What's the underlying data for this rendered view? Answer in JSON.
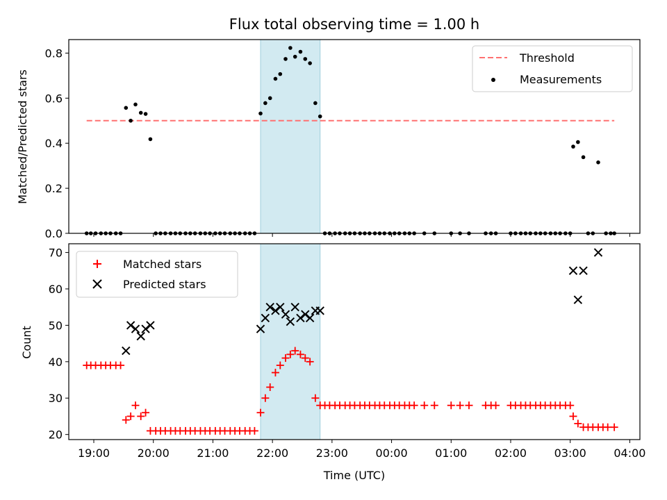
{
  "colors": {
    "threshold": "#ff7070",
    "measurement": "#000000",
    "matched": "#ff0000",
    "predicted": "#000000",
    "highlight": "#add8e6"
  },
  "chart_data": [
    {
      "type": "scatter",
      "title": "Flux total observing time = 1.00 h",
      "xlabel": "",
      "ylabel": "Matched/Predicted stars",
      "ylim": [
        0,
        0.86
      ],
      "xlim": [
        18.58,
        28.17
      ],
      "yticks": [
        0.0,
        0.2,
        0.4,
        0.6,
        0.8
      ],
      "yticklabels": [
        "0.0",
        "0.2",
        "0.4",
        "0.6",
        "0.8"
      ],
      "highlight_span": [
        21.8,
        22.8
      ],
      "legend_position": "upper right",
      "legend": [
        "Threshold",
        "Measurements"
      ],
      "series": [
        {
          "name": "Threshold",
          "kind": "dashed-line",
          "x": [
            18.88,
            27.74
          ],
          "y": [
            0.5,
            0.5
          ]
        },
        {
          "name": "Measurements",
          "kind": "dots",
          "x": [
            18.88,
            18.95,
            19.03,
            19.12,
            19.2,
            19.28,
            19.37,
            19.45,
            19.54,
            19.62,
            19.7,
            19.79,
            19.87,
            19.95,
            20.04,
            20.12,
            20.2,
            20.29,
            20.37,
            20.45,
            20.54,
            20.62,
            20.7,
            20.79,
            20.87,
            20.95,
            21.04,
            21.12,
            21.2,
            21.29,
            21.37,
            21.45,
            21.54,
            21.62,
            21.7,
            21.8,
            21.88,
            21.96,
            22.05,
            22.13,
            22.22,
            22.3,
            22.38,
            22.47,
            22.55,
            22.63,
            22.72,
            22.8,
            22.88,
            22.96,
            23.05,
            23.13,
            23.22,
            23.3,
            23.38,
            23.47,
            23.55,
            23.63,
            23.72,
            23.8,
            23.88,
            23.97,
            24.05,
            24.13,
            24.22,
            24.3,
            24.38,
            24.55,
            24.72,
            25.0,
            25.15,
            25.3,
            25.58,
            25.67,
            25.75,
            26.0,
            26.08,
            26.17,
            26.25,
            26.33,
            26.42,
            26.5,
            26.58,
            26.67,
            26.75,
            26.83,
            26.92,
            27.0,
            27.05,
            27.13,
            27.22,
            27.3,
            27.38,
            27.47,
            27.6,
            27.68,
            27.74
          ],
          "y": [
            0,
            0,
            0,
            0,
            0,
            0,
            0,
            0,
            0.557,
            0.5,
            0.572,
            0.535,
            0.53,
            0.418,
            0,
            0,
            0,
            0,
            0,
            0,
            0,
            0,
            0,
            0,
            0,
            0,
            0,
            0,
            0,
            0,
            0,
            0,
            0,
            0,
            0,
            0.532,
            0.578,
            0.6,
            0.686,
            0.707,
            0.774,
            0.823,
            0.784,
            0.806,
            0.774,
            0.755,
            0.578,
            0.519,
            0,
            0,
            0,
            0,
            0,
            0,
            0,
            0,
            0,
            0,
            0,
            0,
            0,
            0,
            0,
            0,
            0,
            0,
            0,
            0,
            0,
            0,
            0,
            0,
            0,
            0,
            0,
            0,
            0,
            0,
            0,
            0,
            0,
            0,
            0,
            0,
            0,
            0,
            0,
            0,
            0.385,
            0.405,
            0.338,
            0,
            0,
            0.315,
            0,
            0,
            0
          ]
        }
      ]
    },
    {
      "type": "scatter",
      "title": "",
      "xlabel": "Time (UTC)",
      "ylabel": "Count",
      "ylim": [
        18.6,
        72.4
      ],
      "xlim": [
        18.58,
        28.17
      ],
      "xticks": [
        19,
        20,
        21,
        22,
        23,
        24,
        25,
        26,
        27,
        28
      ],
      "xticklabels": [
        "19:00",
        "20:00",
        "21:00",
        "22:00",
        "23:00",
        "00:00",
        "01:00",
        "02:00",
        "03:00",
        "04:00"
      ],
      "yticks": [
        20,
        30,
        40,
        50,
        60,
        70
      ],
      "yticklabels": [
        "20",
        "30",
        "40",
        "50",
        "60",
        "70"
      ],
      "highlight_span": [
        21.8,
        22.8
      ],
      "legend_position": "upper left",
      "legend": [
        "Matched stars",
        "Predicted stars"
      ],
      "series": [
        {
          "name": "Matched stars",
          "marker": "plus",
          "x": [
            18.88,
            18.95,
            19.03,
            19.12,
            19.2,
            19.28,
            19.37,
            19.45,
            19.54,
            19.62,
            19.7,
            19.79,
            19.87,
            19.95,
            20.04,
            20.12,
            20.2,
            20.29,
            20.37,
            20.45,
            20.54,
            20.62,
            20.7,
            20.79,
            20.87,
            20.95,
            21.04,
            21.12,
            21.2,
            21.29,
            21.37,
            21.45,
            21.54,
            21.62,
            21.7,
            21.8,
            21.88,
            21.96,
            22.05,
            22.13,
            22.22,
            22.3,
            22.38,
            22.47,
            22.55,
            22.63,
            22.72,
            22.8,
            22.88,
            22.96,
            23.05,
            23.13,
            23.22,
            23.3,
            23.38,
            23.47,
            23.55,
            23.63,
            23.72,
            23.8,
            23.88,
            23.97,
            24.05,
            24.13,
            24.22,
            24.3,
            24.38,
            24.55,
            24.72,
            25.0,
            25.15,
            25.3,
            25.58,
            25.67,
            25.75,
            26.0,
            26.08,
            26.17,
            26.25,
            26.33,
            26.42,
            26.5,
            26.58,
            26.67,
            26.75,
            26.83,
            26.92,
            27.0,
            27.05,
            27.13,
            27.22,
            27.3,
            27.38,
            27.47,
            27.55,
            27.63,
            27.74
          ],
          "y": [
            39,
            39,
            39,
            39,
            39,
            39,
            39,
            39,
            24,
            25,
            28,
            25,
            26,
            21,
            21,
            21,
            21,
            21,
            21,
            21,
            21,
            21,
            21,
            21,
            21,
            21,
            21,
            21,
            21,
            21,
            21,
            21,
            21,
            21,
            21,
            26,
            30,
            33,
            37,
            39,
            41,
            42,
            43,
            42,
            41,
            40,
            30,
            28,
            28,
            28,
            28,
            28,
            28,
            28,
            28,
            28,
            28,
            28,
            28,
            28,
            28,
            28,
            28,
            28,
            28,
            28,
            28,
            28,
            28,
            28,
            28,
            28,
            28,
            28,
            28,
            28,
            28,
            28,
            28,
            28,
            28,
            28,
            28,
            28,
            28,
            28,
            28,
            28,
            25,
            23,
            22,
            22,
            22,
            22,
            22,
            22,
            22
          ]
        },
        {
          "name": "Predicted stars",
          "marker": "x",
          "x": [
            19.54,
            19.62,
            19.7,
            19.79,
            19.87,
            19.95,
            21.8,
            21.88,
            21.96,
            22.05,
            22.13,
            22.22,
            22.3,
            22.38,
            22.47,
            22.55,
            22.63,
            22.72,
            22.8,
            27.05,
            27.13,
            27.22,
            27.47
          ],
          "y": [
            43,
            50,
            49,
            47,
            49,
            50,
            49,
            52,
            55,
            54,
            55,
            53,
            51,
            55,
            52,
            53,
            52,
            54,
            54,
            65,
            57,
            65,
            70
          ]
        }
      ]
    }
  ]
}
